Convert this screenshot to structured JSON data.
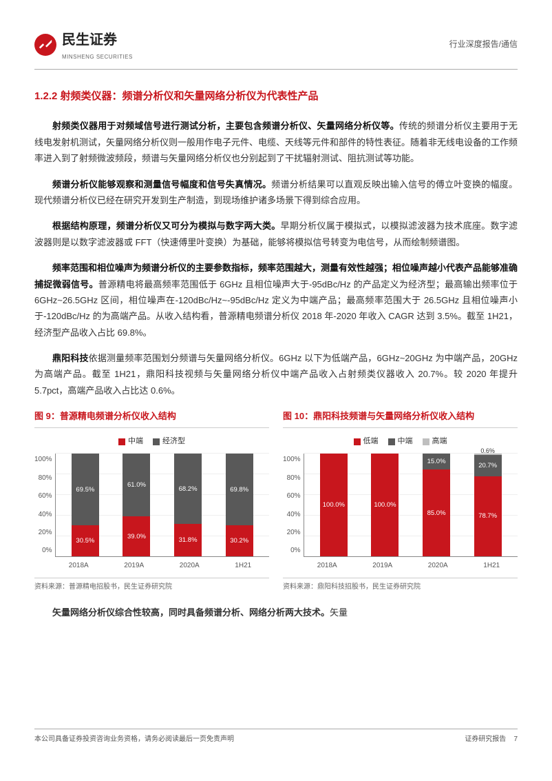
{
  "header": {
    "brand_cn": "民生证券",
    "brand_en": "MINSHENG SECURITIES",
    "right": "行业深度报告/通信"
  },
  "section_title": "1.2.2 射频类仪器：频谱分析仪和矢量网络分析仪为代表性产品",
  "p1_bold": "射频类仪器用于对频域信号进行测试分析，主要包含频谱分析仪、矢量网络分析仪等。",
  "p1_rest": "传统的频谱分析仪主要用于无线电发射机测试，矢量网络分析仪则一般用作电子元件、电缆、天线等元件和部件的特性表征。随着非无线电设备的工作频率进入到了射频微波频段，频谱与矢量网络分析仪也分别起到了干扰辐射测试、阻抗测试等功能。",
  "p2_bold": "频谱分析仪能够观察和测量信号幅度和信号失真情况。",
  "p2_rest": "频谱分析结果可以直观反映出输入信号的傅立叶变换的幅度。现代频谱分析仪已经在研究开发到生产制造，到现场维护诸多场景下得到综合应用。",
  "p3_bold": "根据结构原理，频谱分析仪又可分为模拟与数字两大类。",
  "p3_rest": "早期分析仪属于模拟式，以模拟滤波器为技术底座。数字滤波器则是以数字滤波器或 FFT（快速傅里叶变换）为基础，能够将模拟信号转变为电信号，从而绘制频谱图。",
  "p4_bold": "频率范围和相位噪声为频谱分析仪的主要参数指标，频率范围越大，测量有效性越强；相位噪声越小代表产品能够准确捕捉微弱信号。",
  "p4_rest": "普源精电将最高频率范围低于 6GHz 且相位噪声大于-95dBc/Hz 的产品定义为经济型；最高输出频率位于 6GHz~26.5GHz 区间，相位噪声在-120dBc/Hz~-95dBc/Hz 定义为中端产品；最高频率范围大于 26.5GHz 且相位噪声小于-120dBc/Hz 的为高端产品。从收入结构看，普源精电频谱分析仪 2018 年-2020 年收入 CAGR 达到 3.5%。截至 1H21，经济型产品收入占比 69.8%。",
  "p5_bold": "鼎阳科技",
  "p5_rest": "依据测量频率范围划分频谱与矢量网络分析仪。6GHz 以下为低端产品，6GHz~20GHz 为中端产品，20GHz 为高端产品。截至 1H21，鼎阳科技视频与矢量网络分析仪中端产品收入占射频类仪器收入 20.7%。较 2020 年提升 5.7pct，高端产品收入占比达 0.6%。",
  "last_para": "矢量网络分析仪综合性较高，同时具备频谱分析、网络分析两大技术。",
  "last_para_rest": "矢量",
  "chart9": {
    "title": "图 9：普源精电频谱分析仪收入结构",
    "type": "stacked-bar",
    "legend": [
      {
        "label": "中端",
        "color": "#c8161d"
      },
      {
        "label": "经济型",
        "color": "#595959"
      }
    ],
    "categories": [
      "2018A",
      "2019A",
      "2020A",
      "1H21"
    ],
    "series": {
      "mid": [
        30.5,
        39.0,
        31.8,
        30.2
      ],
      "econ": [
        69.5,
        61.0,
        68.2,
        69.8
      ]
    },
    "yticks": [
      "0%",
      "20%",
      "40%",
      "60%",
      "80%",
      "100%"
    ],
    "ylim": [
      0,
      100
    ],
    "colors": {
      "mid": "#c8161d",
      "econ": "#595959",
      "grid": "#eeeeee",
      "text": "#ffffff"
    },
    "source": "资料来源：普源精电招股书，民生证券研究院"
  },
  "chart10": {
    "title": "图 10：鼎阳科技频谱与矢量网络分析仪收入结构",
    "type": "stacked-bar",
    "legend": [
      {
        "label": "低端",
        "color": "#c8161d"
      },
      {
        "label": "中端",
        "color": "#595959"
      },
      {
        "label": "高端",
        "color": "#bfbfbf"
      }
    ],
    "categories": [
      "2018A",
      "2019A",
      "2020A",
      "1H21"
    ],
    "series": {
      "low": [
        100.0,
        100.0,
        85.0,
        78.7
      ],
      "mid": [
        0.0,
        0.0,
        15.0,
        20.7
      ],
      "high": [
        0.0,
        0.0,
        0.0,
        0.6
      ]
    },
    "high_label_outside": "0.6%",
    "yticks": [
      "0%",
      "20%",
      "40%",
      "60%",
      "80%",
      "100%"
    ],
    "ylim": [
      0,
      100
    ],
    "colors": {
      "low": "#c8161d",
      "mid": "#595959",
      "high": "#bfbfbf",
      "grid": "#eeeeee",
      "text": "#ffffff"
    },
    "source": "资料来源：鼎阳科技招股书，民生证券研究院"
  },
  "footer": {
    "left": "本公司具备证券投资咨询业务资格，请务必阅读最后一页免责声明",
    "right_label": "证券研究报告",
    "page": "7"
  }
}
